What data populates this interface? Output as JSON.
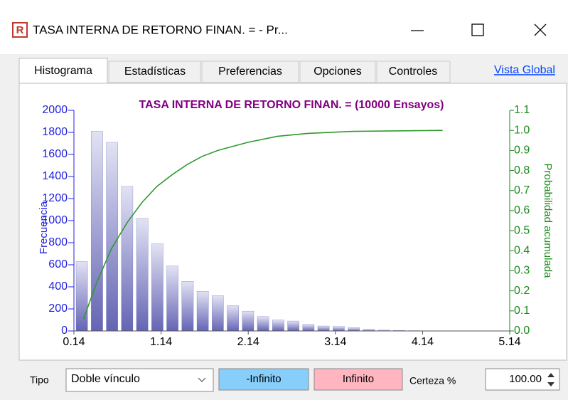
{
  "window": {
    "title": "TASA INTERNA DE RETORNO FINAN.  = - Pr..."
  },
  "tabs": [
    "Histograma",
    "Estadísticas",
    "Preferencias",
    "Opciones",
    "Controles"
  ],
  "link": "Vista Global",
  "chart_data": {
    "type": "histogram",
    "title": "TASA INTERNA DE RETORNO FINAN.  = (10000 Ensayos)",
    "ylabel": "Frecuencia",
    "y2label": "Probabilidad acumulada",
    "bins": [
      0.14,
      0.313,
      0.487,
      0.66,
      0.833,
      1.007,
      1.18,
      1.353,
      1.527,
      1.7,
      1.873,
      2.047,
      2.22,
      2.393,
      2.567,
      2.74,
      2.913,
      3.087,
      3.26,
      3.433,
      3.607,
      3.78,
      3.953,
      4.127,
      4.3
    ],
    "values": [
      630,
      1810,
      1710,
      1310,
      1020,
      790,
      590,
      450,
      360,
      320,
      230,
      180,
      130,
      100,
      90,
      60,
      45,
      40,
      30,
      15,
      8,
      5,
      3,
      2
    ],
    "color": "#6464b4",
    "xlim": [
      0.14,
      5.14
    ],
    "xticks": [
      0.14,
      1.14,
      2.14,
      3.14,
      4.14,
      5.14
    ],
    "ylim": [
      0,
      2000
    ],
    "yticks": [
      0,
      200,
      400,
      600,
      800,
      1000,
      1200,
      1400,
      1600,
      1800,
      2000
    ],
    "y2lim": [
      0,
      1.1
    ],
    "y2ticks": [
      {
        "value": 0,
        "label": "0.0"
      },
      0.1,
      0.2,
      0.3,
      0.4,
      0.5,
      0.6,
      0.7,
      0.8,
      0.9,
      {
        "value": 1,
        "label": "1.0"
      },
      1.1
    ],
    "cumulative": {
      "axis": "y2",
      "color": "#2e9a2e",
      "x": [
        0.25,
        0.4,
        0.57,
        0.75,
        0.92,
        1.09,
        1.27,
        1.44,
        1.61,
        1.79,
        2.13,
        2.47,
        2.82,
        3.34,
        4.37
      ],
      "values": [
        0.06,
        0.24,
        0.41,
        0.54,
        0.64,
        0.72,
        0.78,
        0.83,
        0.87,
        0.9,
        0.94,
        0.97,
        0.985,
        0.995,
        1.0
      ]
    }
  },
  "controls": {
    "tipo_label": "Tipo",
    "tipo_value": "Doble vínculo",
    "left_button": "-Infinito",
    "right_button": "Infinito",
    "certeza_label": "Certeza %",
    "certeza_value": "100.00"
  }
}
